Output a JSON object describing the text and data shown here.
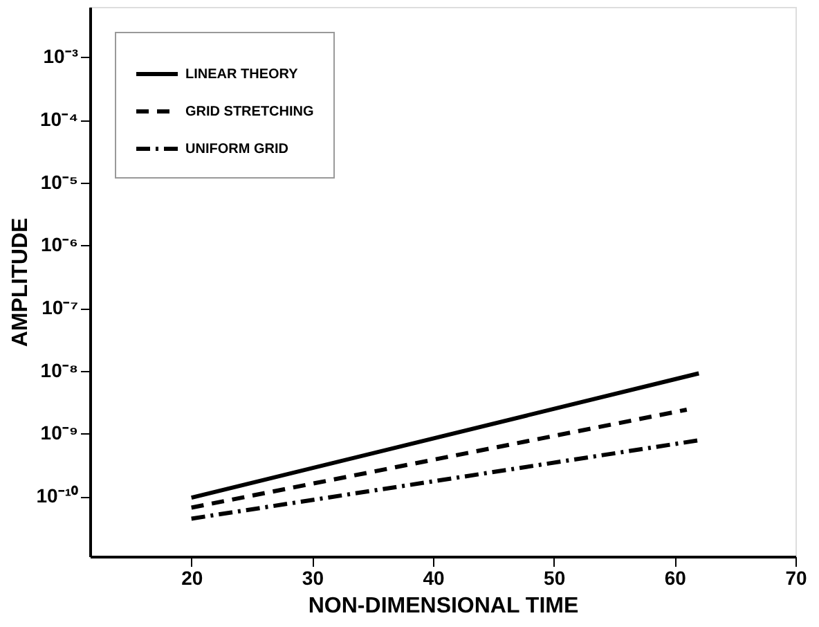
{
  "chart_data": {
    "type": "line",
    "xlabel": "NON-DIMENSIONAL TIME",
    "ylabel": "AMPLITUDE",
    "log": "y",
    "grid": false,
    "legend": "top left",
    "xlim": [
      11.6,
      70
    ],
    "xticks": [
      20,
      30,
      40,
      50,
      60,
      70
    ],
    "ylim": [
      1.1e-11,
      0.0063
    ],
    "yticks": [
      {
        "value": 1e-10,
        "label": "10⁻¹⁰"
      },
      {
        "value": 1e-09,
        "label": "10⁻⁹"
      },
      {
        "value": 1e-08,
        "label": "10⁻⁸"
      },
      {
        "value": 1e-07,
        "label": "10⁻⁷"
      },
      {
        "value": 1e-06,
        "label": "10⁻⁶"
      },
      {
        "value": 1e-05,
        "label": "10⁻⁵"
      },
      {
        "value": 0.0001,
        "label": "10⁻⁴"
      },
      {
        "value": 0.001,
        "label": "10⁻³"
      }
    ],
    "series": [
      {
        "name": "LINEAR THEORY",
        "color": "#000000",
        "line_style": "solid",
        "x": [
          20,
          62
        ],
        "values": [
          9.5e-11,
          9.1e-09
        ]
      },
      {
        "name": "GRID STRETCHING",
        "color": "#000000",
        "line_style": "dashed",
        "x": [
          20,
          61
        ],
        "values": [
          6.6e-11,
          2.4e-09
        ]
      },
      {
        "name": "UNIFORM GRID",
        "color": "#000000",
        "line_style": "dashdot",
        "x": [
          20,
          62
        ],
        "values": [
          4.4e-11,
          7.8e-10
        ]
      }
    ]
  }
}
